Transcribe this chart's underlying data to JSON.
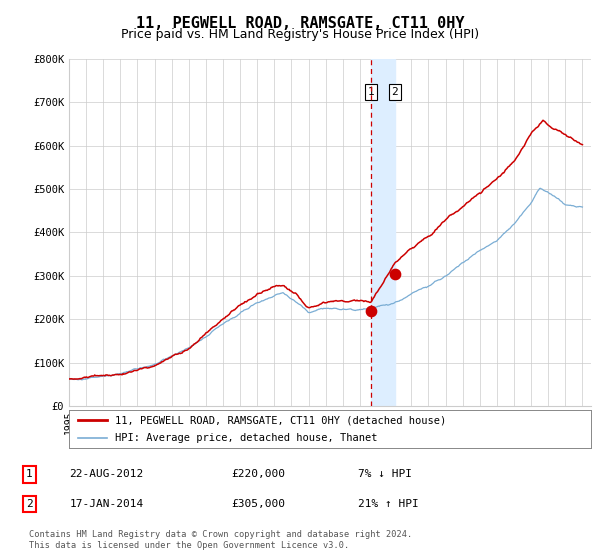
{
  "title": "11, PEGWELL ROAD, RAMSGATE, CT11 0HY",
  "subtitle": "Price paid vs. HM Land Registry's House Price Index (HPI)",
  "legend_line1": "11, PEGWELL ROAD, RAMSGATE, CT11 0HY (detached house)",
  "legend_line2": "HPI: Average price, detached house, Thanet",
  "annotation1_label": "1",
  "annotation1_date": "22-AUG-2012",
  "annotation1_price": "£220,000",
  "annotation1_hpi": "7% ↓ HPI",
  "annotation2_label": "2",
  "annotation2_date": "17-JAN-2014",
  "annotation2_price": "£305,000",
  "annotation2_hpi": "21% ↑ HPI",
  "footer": "Contains HM Land Registry data © Crown copyright and database right 2024.\nThis data is licensed under the Open Government Licence v3.0.",
  "sale1_x": 2012.64,
  "sale1_y": 220000,
  "sale2_x": 2014.04,
  "sale2_y": 305000,
  "vline_x": 2012.64,
  "shade_x1": 2012.64,
  "shade_x2": 2014.04,
  "ylim": [
    0,
    800000
  ],
  "xlim": [
    1995,
    2025.5
  ],
  "red_color": "#cc0000",
  "blue_color": "#7aadd4",
  "shade_color": "#ddeeff",
  "vline_color": "#cc0000",
  "grid_color": "#cccccc",
  "bg_color": "#ffffff",
  "title_fontsize": 11,
  "subtitle_fontsize": 9
}
